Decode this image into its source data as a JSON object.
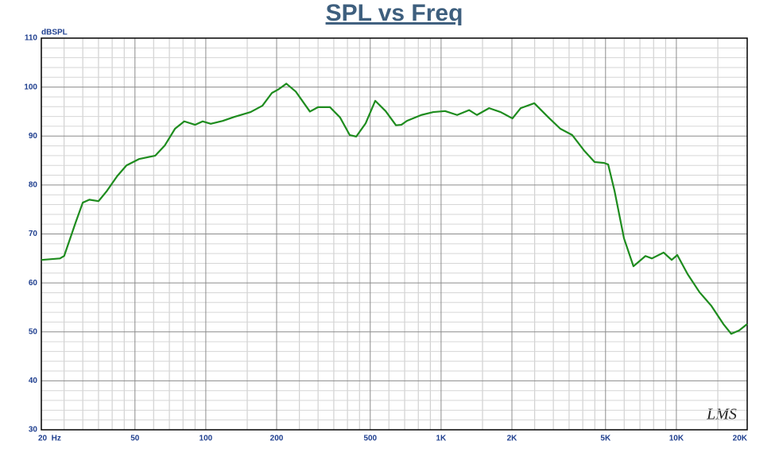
{
  "chart_data": {
    "type": "line",
    "title": "SPL vs Freq",
    "y_label": "dBSPL",
    "watermark": "LMS",
    "xscale": "log",
    "grid": true,
    "xlim": [
      20,
      20000
    ],
    "ylim": [
      30,
      110
    ],
    "xticks": [
      {
        "value": 20,
        "label": "20  Hz"
      },
      50,
      100,
      200,
      500,
      {
        "value": 1000,
        "label": "1K"
      },
      {
        "value": 2000,
        "label": "2K"
      },
      {
        "value": 5000,
        "label": "5K"
      },
      {
        "value": 10000,
        "label": "10K"
      },
      {
        "value": 20000,
        "label": "20K"
      }
    ],
    "xminorticks": [
      25,
      30,
      35,
      40,
      45,
      60,
      70,
      80,
      90,
      150,
      250,
      300,
      350,
      400,
      450,
      600,
      700,
      800,
      900,
      1500,
      2500,
      3000,
      3500,
      4000,
      4500,
      6000,
      7000,
      8000,
      9000,
      15000
    ],
    "yticks": [
      30,
      40,
      50,
      60,
      70,
      80,
      90,
      100,
      110
    ],
    "yminorticks": [
      32,
      34,
      36,
      38,
      42,
      44,
      46,
      48,
      52,
      54,
      56,
      58,
      62,
      64,
      66,
      68,
      72,
      74,
      76,
      78,
      82,
      84,
      86,
      88,
      92,
      94,
      96,
      98,
      102,
      104,
      106,
      108
    ],
    "x": [
      20,
      24,
      25,
      28,
      30,
      32,
      35,
      38,
      42,
      46,
      52,
      61,
      67,
      74,
      81,
      90,
      97,
      105,
      118,
      132,
      155,
      174,
      191,
      203,
      220,
      241,
      277,
      300,
      337,
      372,
      409,
      436,
      478,
      525,
      581,
      643,
      678,
      716,
      824,
      927,
      1040,
      1170,
      1315,
      1420,
      1600,
      1790,
      2010,
      2180,
      2490,
      2860,
      3210,
      3610,
      4060,
      4490,
      4930,
      5130,
      5460,
      5990,
      6570,
      7390,
      7870,
      8830,
      9550,
      10090,
      11160,
      12540,
      14090,
      15840,
      17100,
      18500,
      20000
    ],
    "series": [
      {
        "name": "SPL",
        "color": "#1e8c1e",
        "values": [
          64.7,
          65,
          65.5,
          72.4,
          76.4,
          77,
          76.7,
          78.8,
          81.8,
          84,
          85.3,
          86,
          88.1,
          91.5,
          93,
          92.3,
          93,
          92.5,
          93.1,
          93.9,
          94.9,
          96.2,
          98.8,
          99.5,
          100.7,
          99.1,
          95,
          95.9,
          95.9,
          93.8,
          90.2,
          89.9,
          92.6,
          97.2,
          95.1,
          92.2,
          92.3,
          93.1,
          94.3,
          94.9,
          95.1,
          94.3,
          95.3,
          94.3,
          95.7,
          94.9,
          93.6,
          95.7,
          96.7,
          93.8,
          91.5,
          90.2,
          87,
          84.7,
          84.5,
          84.2,
          78.8,
          69.1,
          63.4,
          65.5,
          65,
          66.2,
          64.7,
          65.7,
          61.8,
          58.1,
          55.3,
          51.6,
          49.6,
          50.3,
          51.6
        ]
      }
    ]
  }
}
